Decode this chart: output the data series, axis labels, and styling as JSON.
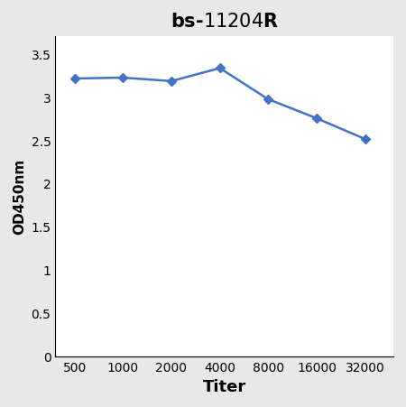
{
  "xlabel": "Titer",
  "ylabel": "OD450nm",
  "x_values": [
    500,
    1000,
    2000,
    4000,
    8000,
    16000,
    32000
  ],
  "y_values": [
    3.21,
    3.22,
    3.18,
    3.33,
    2.97,
    2.75,
    2.51
  ],
  "line_color": "#4472C4",
  "marker": "D",
  "marker_size": 5,
  "ylim": [
    0,
    3.7
  ],
  "yticks": [
    0,
    0.5,
    1,
    1.5,
    2,
    2.5,
    3,
    3.5
  ],
  "xtick_labels": [
    "500",
    "1000",
    "2000",
    "4000",
    "8000",
    "16000",
    "32000"
  ],
  "bg_color": "#e8e8e8",
  "plot_bg_color": "#ffffff",
  "title_prefix": "bs-",
  "title_italic": "11204",
  "title_suffix": "R",
  "title_fontsize": 15,
  "xlabel_fontsize": 13,
  "ylabel_fontsize": 11,
  "tick_fontsize": 10
}
